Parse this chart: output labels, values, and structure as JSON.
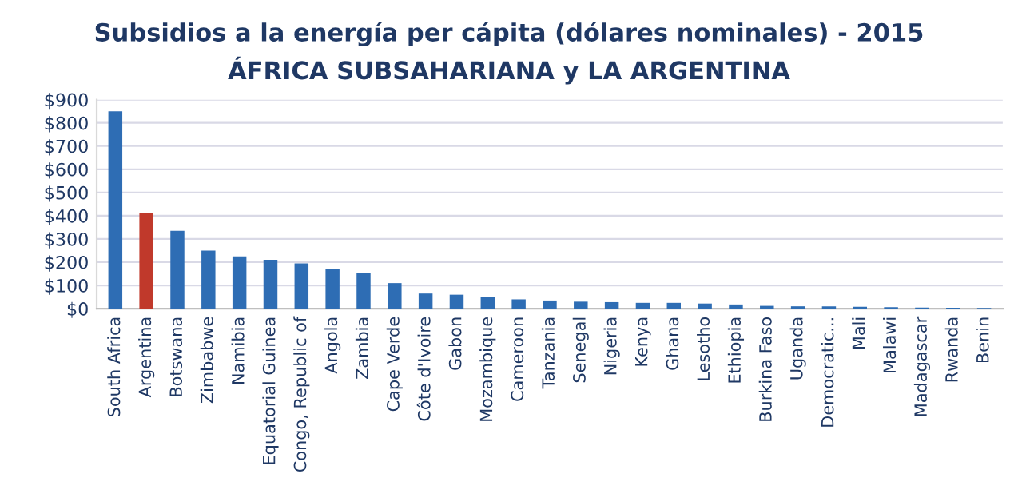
{
  "chart_data": {
    "type": "bar",
    "title": "Subsidios a la energía per cápita (dólares nominales) - 2015",
    "subtitle": "ÁFRICA SUBSAHARIANA y LA ARGENTINA",
    "categories": [
      "South Africa",
      "Argentina",
      "Botswana",
      "Zimbabwe",
      "Namibia",
      "Equatorial Guinea",
      "Congo, Republic of",
      "Angola",
      "Zambia",
      "Cape Verde",
      "Côte d'Ivoire",
      "Gabon",
      "Mozambique",
      "Cameroon",
      "Tanzania",
      "Senegal",
      "Nigeria",
      "Kenya",
      "Ghana",
      "Lesotho",
      "Ethiopia",
      "Burkina Faso",
      "Uganda",
      "Democratic...",
      "Mali",
      "Malawi",
      "Madagascar",
      "Rwanda",
      "Benin"
    ],
    "values": [
      850,
      410,
      335,
      250,
      225,
      210,
      195,
      170,
      155,
      110,
      65,
      60,
      50,
      40,
      35,
      30,
      28,
      25,
      25,
      22,
      18,
      12,
      10,
      10,
      8,
      6,
      5,
      4,
      3
    ],
    "colors": [
      "#2e6db4",
      "#c0392b",
      "#2e6db4",
      "#2e6db4",
      "#2e6db4",
      "#2e6db4",
      "#2e6db4",
      "#2e6db4",
      "#2e6db4",
      "#2e6db4",
      "#2e6db4",
      "#2e6db4",
      "#2e6db4",
      "#2e6db4",
      "#2e6db4",
      "#2e6db4",
      "#2e6db4",
      "#2e6db4",
      "#2e6db4",
      "#2e6db4",
      "#2e6db4",
      "#2e6db4",
      "#2e6db4",
      "#2e6db4",
      "#2e6db4",
      "#2e6db4",
      "#2e6db4",
      "#2e6db4",
      "#2e6db4"
    ],
    "ylim": [
      0,
      900
    ],
    "yticks": [
      {
        "value": 0,
        "label": "$0"
      },
      {
        "value": 100,
        "label": "$100"
      },
      {
        "value": 200,
        "label": "$200"
      },
      {
        "value": 300,
        "label": "$300"
      },
      {
        "value": 400,
        "label": "$400"
      },
      {
        "value": 500,
        "label": "$500"
      },
      {
        "value": 600,
        "label": "$600"
      },
      {
        "value": 700,
        "label": "$700"
      },
      {
        "value": 800,
        "label": "$800"
      },
      {
        "value": 900,
        "label": "$900"
      }
    ],
    "grid": "y"
  }
}
